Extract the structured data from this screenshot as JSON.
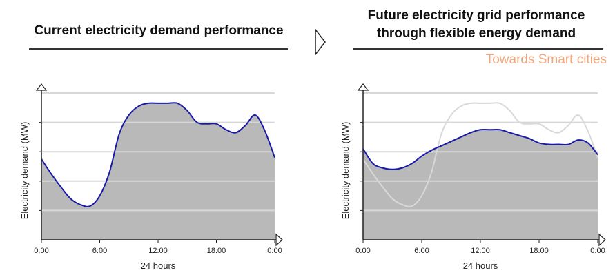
{
  "chart_data": [
    {
      "type": "area",
      "title": "Current electricity demand performance",
      "xlabel": "24 hours",
      "ylabel": "Electricity demand (MW)",
      "x_ticks": [
        "0:00",
        "6:00",
        "12:00",
        "18:00",
        "0:00"
      ],
      "xlim": [
        0,
        24
      ],
      "ylim": [
        0,
        100
      ],
      "grid": true,
      "series": [
        {
          "color": "#1a1aa8",
          "x": [
            0,
            1,
            2,
            3,
            4,
            5,
            6,
            7,
            8,
            9,
            10,
            11,
            12,
            13,
            14,
            15,
            16,
            17,
            18,
            19,
            20,
            21,
            22,
            23,
            24
          ],
          "values": [
            55,
            45,
            36,
            28,
            24,
            23,
            30,
            46,
            72,
            85,
            91,
            93,
            93,
            93,
            93,
            88,
            80,
            79,
            79,
            75,
            73,
            78,
            85,
            74,
            56
          ]
        }
      ]
    },
    {
      "type": "area",
      "title": "Future electricity grid performance through flexible energy demand",
      "subtitle": "Towards Smart cities",
      "xlabel": "24 hours",
      "ylabel": "Electricity demand (MW)",
      "x_ticks": [
        "0:00",
        "6:00",
        "12:00",
        "18:00",
        "0:00"
      ],
      "xlim": [
        0,
        24
      ],
      "ylim": [
        0,
        100
      ],
      "grid": true,
      "series": [
        {
          "color": "#1a1aa8",
          "x": [
            0,
            1,
            2,
            3,
            4,
            5,
            6,
            7,
            8,
            9,
            10,
            11,
            12,
            13,
            14,
            15,
            16,
            17,
            18,
            19,
            20,
            21,
            22,
            23,
            24
          ],
          "values": [
            62,
            52,
            49,
            48,
            49,
            52,
            57,
            61,
            64,
            67,
            70,
            73,
            75,
            75,
            75,
            73,
            71,
            69,
            66,
            65,
            65,
            65,
            68,
            66,
            58
          ]
        },
        {
          "color": "#d8d8d8",
          "x": [
            0,
            1,
            2,
            3,
            4,
            5,
            6,
            7,
            8,
            9,
            10,
            11,
            12,
            13,
            14,
            15,
            16,
            17,
            18,
            19,
            20,
            21,
            22,
            23,
            24
          ],
          "values": [
            55,
            45,
            36,
            28,
            24,
            23,
            30,
            46,
            72,
            85,
            91,
            93,
            93,
            93,
            93,
            88,
            80,
            79,
            79,
            75,
            73,
            78,
            85,
            74,
            56
          ]
        }
      ]
    }
  ],
  "colors": {
    "area_fill": "#b9b9b9",
    "demand_line": "#1a1aa8",
    "previous_demand_line": "#d8d8d8",
    "grid": "#d7d7d7",
    "tagline": "#f2a57a"
  }
}
